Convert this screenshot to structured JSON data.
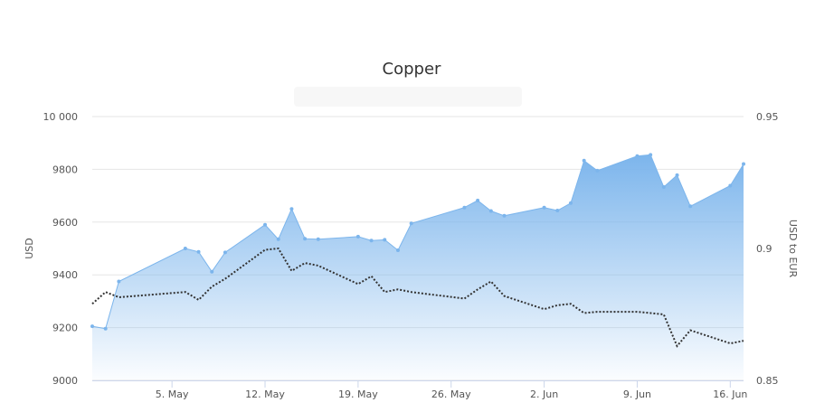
{
  "chart_data": {
    "type": "area",
    "title": "Copper",
    "ylabel": "USD",
    "y2label": "USD to EUR",
    "ylim": [
      9000,
      10000
    ],
    "y2lim": [
      0.85,
      0.95
    ],
    "yticks": [
      "9000",
      "9200",
      "9400",
      "9600",
      "9800",
      "10 000"
    ],
    "y2ticks": [
      "0.85",
      "0.9",
      "0.95"
    ],
    "xticks": [
      {
        "date": "2021-05-05",
        "label": "5. May"
      },
      {
        "date": "2021-05-12",
        "label": "12. May"
      },
      {
        "date": "2021-05-19",
        "label": "19. May"
      },
      {
        "date": "2021-05-26",
        "label": "26. May"
      },
      {
        "date": "2021-06-02",
        "label": "2. Jun"
      },
      {
        "date": "2021-06-09",
        "label": "9. Jun"
      },
      {
        "date": "2021-06-16",
        "label": "16. Jun"
      }
    ],
    "xlim": [
      "2021-04-29",
      "2021-06-17"
    ],
    "series": [
      {
        "axis": "left",
        "style": "area",
        "color": "#7cb5ec",
        "points": [
          {
            "x": "2021-04-29",
            "y": 9205
          },
          {
            "x": "2021-04-30",
            "y": 9196
          },
          {
            "x": "2021-05-01",
            "y": 9375
          },
          {
            "x": "2021-05-06",
            "y": 9500
          },
          {
            "x": "2021-05-07",
            "y": 9487
          },
          {
            "x": "2021-05-08",
            "y": 9412
          },
          {
            "x": "2021-05-09",
            "y": 9485
          },
          {
            "x": "2021-05-12",
            "y": 9590
          },
          {
            "x": "2021-05-13",
            "y": 9535
          },
          {
            "x": "2021-05-14",
            "y": 9650
          },
          {
            "x": "2021-05-15",
            "y": 9537
          },
          {
            "x": "2021-05-16",
            "y": 9535
          },
          {
            "x": "2021-05-19",
            "y": 9545
          },
          {
            "x": "2021-05-20",
            "y": 9530
          },
          {
            "x": "2021-05-21",
            "y": 9533
          },
          {
            "x": "2021-05-22",
            "y": 9493
          },
          {
            "x": "2021-05-23",
            "y": 9595
          },
          {
            "x": "2021-05-27",
            "y": 9655
          },
          {
            "x": "2021-05-28",
            "y": 9682
          },
          {
            "x": "2021-05-29",
            "y": 9642
          },
          {
            "x": "2021-05-30",
            "y": 9624
          },
          {
            "x": "2021-06-02",
            "y": 9655
          },
          {
            "x": "2021-06-03",
            "y": 9644
          },
          {
            "x": "2021-06-04",
            "y": 9672
          },
          {
            "x": "2021-06-05",
            "y": 9833
          },
          {
            "x": "2021-06-06",
            "y": 9795
          },
          {
            "x": "2021-06-09",
            "y": 9850
          },
          {
            "x": "2021-06-10",
            "y": 9855
          },
          {
            "x": "2021-06-11",
            "y": 9733
          },
          {
            "x": "2021-06-12",
            "y": 9778
          },
          {
            "x": "2021-06-13",
            "y": 9660
          },
          {
            "x": "2021-06-16",
            "y": 9738
          },
          {
            "x": "2021-06-17",
            "y": 9820
          }
        ]
      },
      {
        "axis": "right",
        "style": "dotted-line",
        "color": "#333333",
        "points": [
          {
            "x": "2021-04-29",
            "y": 0.879
          },
          {
            "x": "2021-04-30",
            "y": 0.8835
          },
          {
            "x": "2021-05-01",
            "y": 0.8815
          },
          {
            "x": "2021-05-06",
            "y": 0.8835
          },
          {
            "x": "2021-05-07",
            "y": 0.8805
          },
          {
            "x": "2021-05-08",
            "y": 0.8855
          },
          {
            "x": "2021-05-09",
            "y": 0.8885
          },
          {
            "x": "2021-05-12",
            "y": 0.8995
          },
          {
            "x": "2021-05-13",
            "y": 0.9
          },
          {
            "x": "2021-05-14",
            "y": 0.8915
          },
          {
            "x": "2021-05-15",
            "y": 0.8945
          },
          {
            "x": "2021-05-16",
            "y": 0.8935
          },
          {
            "x": "2021-05-19",
            "y": 0.8865
          },
          {
            "x": "2021-05-20",
            "y": 0.8895
          },
          {
            "x": "2021-05-21",
            "y": 0.8835
          },
          {
            "x": "2021-05-22",
            "y": 0.8845
          },
          {
            "x": "2021-05-23",
            "y": 0.8835
          },
          {
            "x": "2021-05-27",
            "y": 0.881
          },
          {
            "x": "2021-05-28",
            "y": 0.8845
          },
          {
            "x": "2021-05-29",
            "y": 0.8875
          },
          {
            "x": "2021-05-30",
            "y": 0.882
          },
          {
            "x": "2021-06-02",
            "y": 0.877
          },
          {
            "x": "2021-06-03",
            "y": 0.8785
          },
          {
            "x": "2021-06-04",
            "y": 0.879
          },
          {
            "x": "2021-06-05",
            "y": 0.8755
          },
          {
            "x": "2021-06-06",
            "y": 0.876
          },
          {
            "x": "2021-06-09",
            "y": 0.876
          },
          {
            "x": "2021-06-10",
            "y": 0.8755
          },
          {
            "x": "2021-06-11",
            "y": 0.875
          },
          {
            "x": "2021-06-12",
            "y": 0.863
          },
          {
            "x": "2021-06-13",
            "y": 0.869
          },
          {
            "x": "2021-06-16",
            "y": 0.864
          },
          {
            "x": "2021-06-17",
            "y": 0.865
          }
        ]
      }
    ],
    "grid": true
  }
}
